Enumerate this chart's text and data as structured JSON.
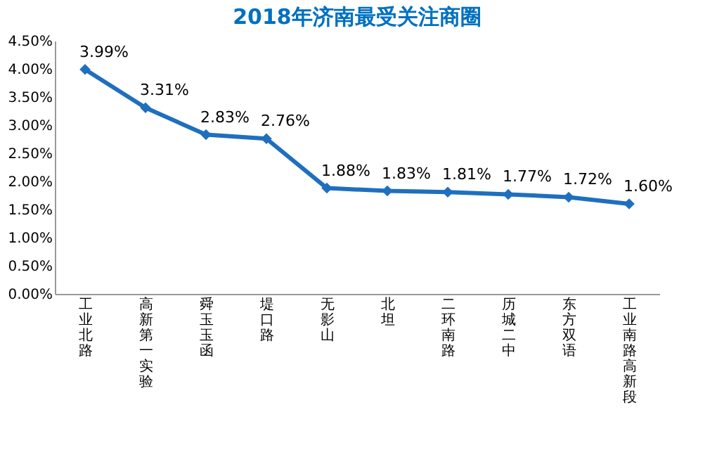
{
  "chart_data": {
    "type": "line",
    "title": "2018年济南最受关注商圈",
    "categories": [
      "工业北路",
      "高新第一实验",
      "舜玉玉函",
      "堤口路",
      "无影山",
      "北坦",
      "二环南路",
      "历城二中",
      "东方双语",
      "工业南路高新段"
    ],
    "series": [
      {
        "color": "#1f6fbf",
        "values": [
          3.99,
          3.31,
          2.83,
          2.76,
          1.88,
          1.83,
          1.81,
          1.77,
          1.72,
          1.6
        ],
        "value_labels": [
          "3.99%",
          "3.31%",
          "2.83%",
          "2.76%",
          "1.88%",
          "1.83%",
          "1.81%",
          "1.77%",
          "1.72%",
          "1.60%"
        ]
      }
    ],
    "ylim": [
      0,
      4.5
    ],
    "yticks": [
      {
        "value": 0,
        "label": "0.00%"
      },
      {
        "value": 0.5,
        "label": "0.50%"
      },
      {
        "value": 1,
        "label": "1.00%"
      },
      {
        "value": 1.5,
        "label": "1.50%"
      },
      {
        "value": 2,
        "label": "2.00%"
      },
      {
        "value": 2.5,
        "label": "2.50%"
      },
      {
        "value": 3,
        "label": "3.00%"
      },
      {
        "value": 3.5,
        "label": "3.50%"
      },
      {
        "value": 4,
        "label": "4.00%"
      },
      {
        "value": 4.5,
        "label": "4.50%"
      }
    ],
    "grid": false,
    "marker": "diamond",
    "line_style": "solid"
  }
}
